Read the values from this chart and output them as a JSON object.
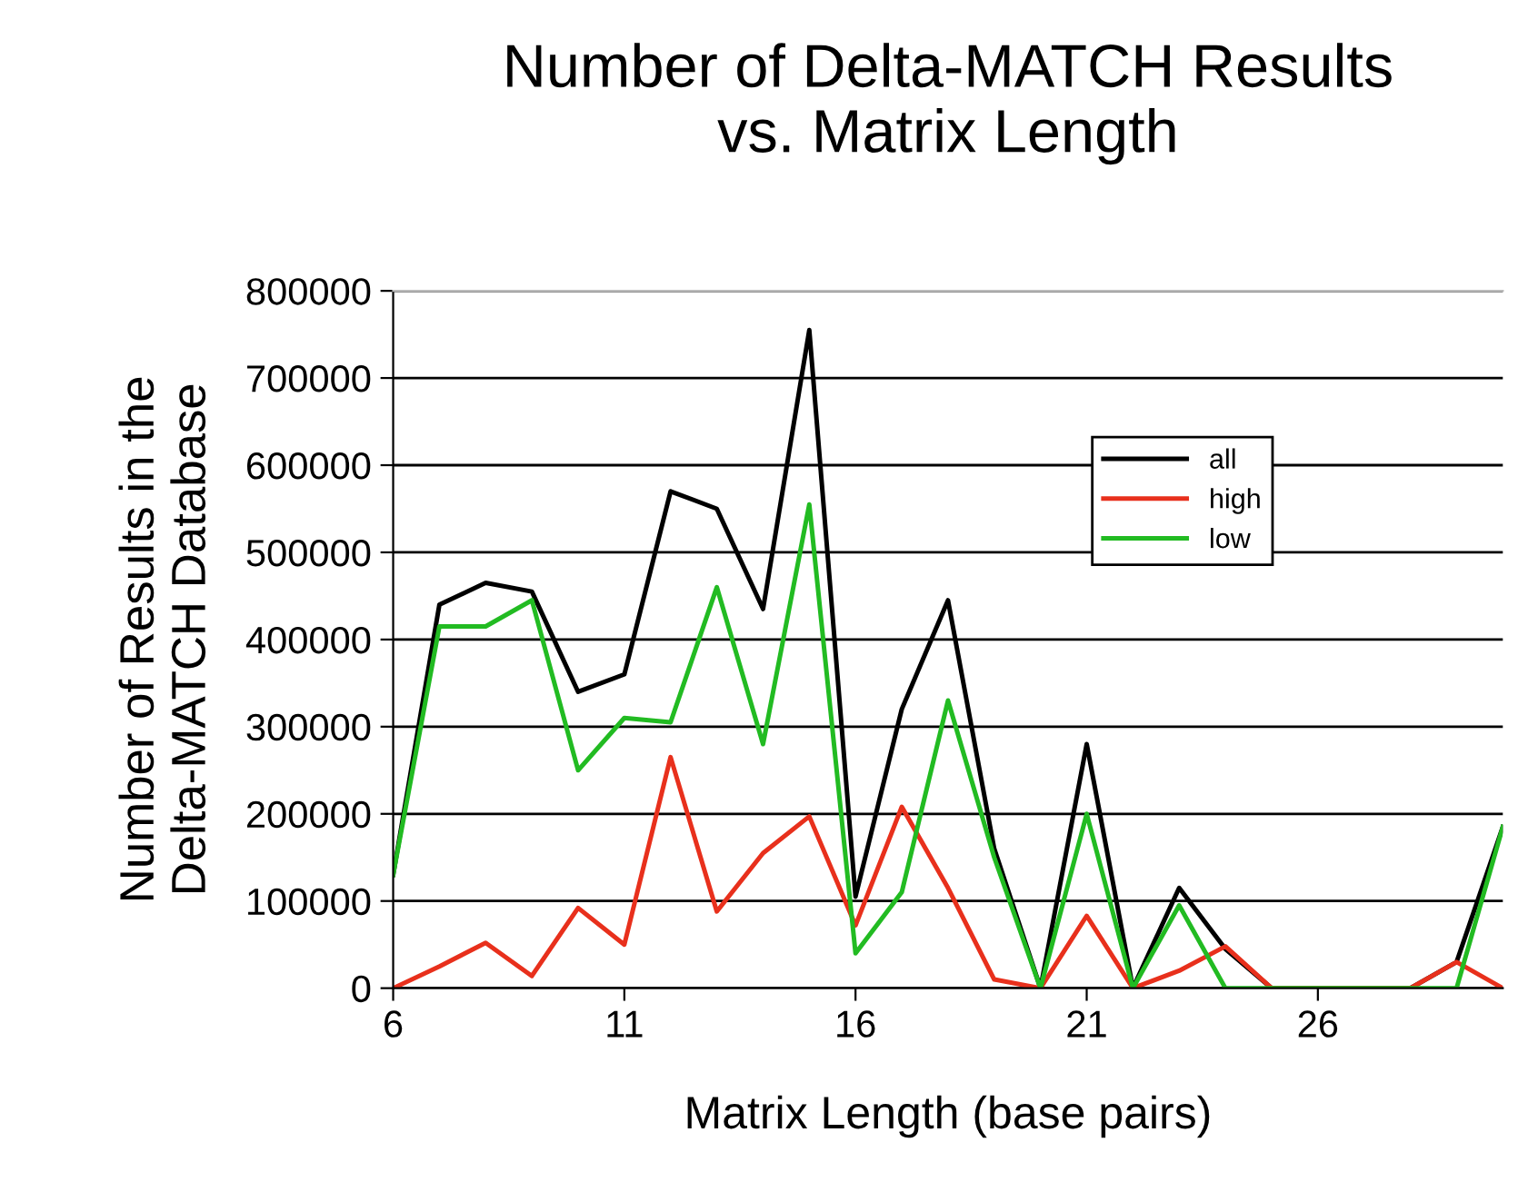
{
  "chart_data": {
    "type": "line",
    "title": "Number of Delta-MATCH Results\nvs. Matrix Length",
    "xlabel": "Matrix Length (base pairs)",
    "ylabel": "Number of Results in the\nDelta-MATCH Database",
    "x": [
      6,
      7,
      8,
      9,
      10,
      11,
      12,
      13,
      14,
      15,
      16,
      17,
      18,
      19,
      20,
      21,
      22,
      23,
      24,
      25,
      26,
      27,
      28,
      29,
      30
    ],
    "series": [
      {
        "name": "all",
        "color": "#000000",
        "values": [
          130000,
          440000,
          465000,
          455000,
          340000,
          360000,
          570000,
          550000,
          435000,
          755000,
          105000,
          320000,
          445000,
          160000,
          0,
          280000,
          0,
          115000,
          45000,
          0,
          0,
          0,
          0,
          30000,
          185000
        ]
      },
      {
        "name": "high",
        "color": "#e8301c",
        "values": [
          0,
          25000,
          52000,
          14000,
          92000,
          50000,
          265000,
          88000,
          155000,
          197000,
          72000,
          208000,
          115000,
          10000,
          0,
          83000,
          0,
          20000,
          48000,
          0,
          0,
          0,
          0,
          30000,
          0
        ]
      },
      {
        "name": "low",
        "color": "#22bb22",
        "values": [
          130000,
          415000,
          415000,
          445000,
          250000,
          310000,
          305000,
          460000,
          280000,
          555000,
          40000,
          110000,
          330000,
          150000,
          0,
          200000,
          0,
          95000,
          0,
          0,
          0,
          0,
          0,
          0,
          185000
        ]
      }
    ],
    "xlim": [
      6,
      30
    ],
    "xticks": [
      6,
      11,
      16,
      21,
      26
    ],
    "ylim": [
      0,
      800000
    ],
    "yticks": [
      0,
      100000,
      200000,
      300000,
      400000,
      500000,
      600000,
      700000,
      800000
    ],
    "grid": "y",
    "legend": "top right",
    "marker": "none",
    "line_style": "solid"
  }
}
